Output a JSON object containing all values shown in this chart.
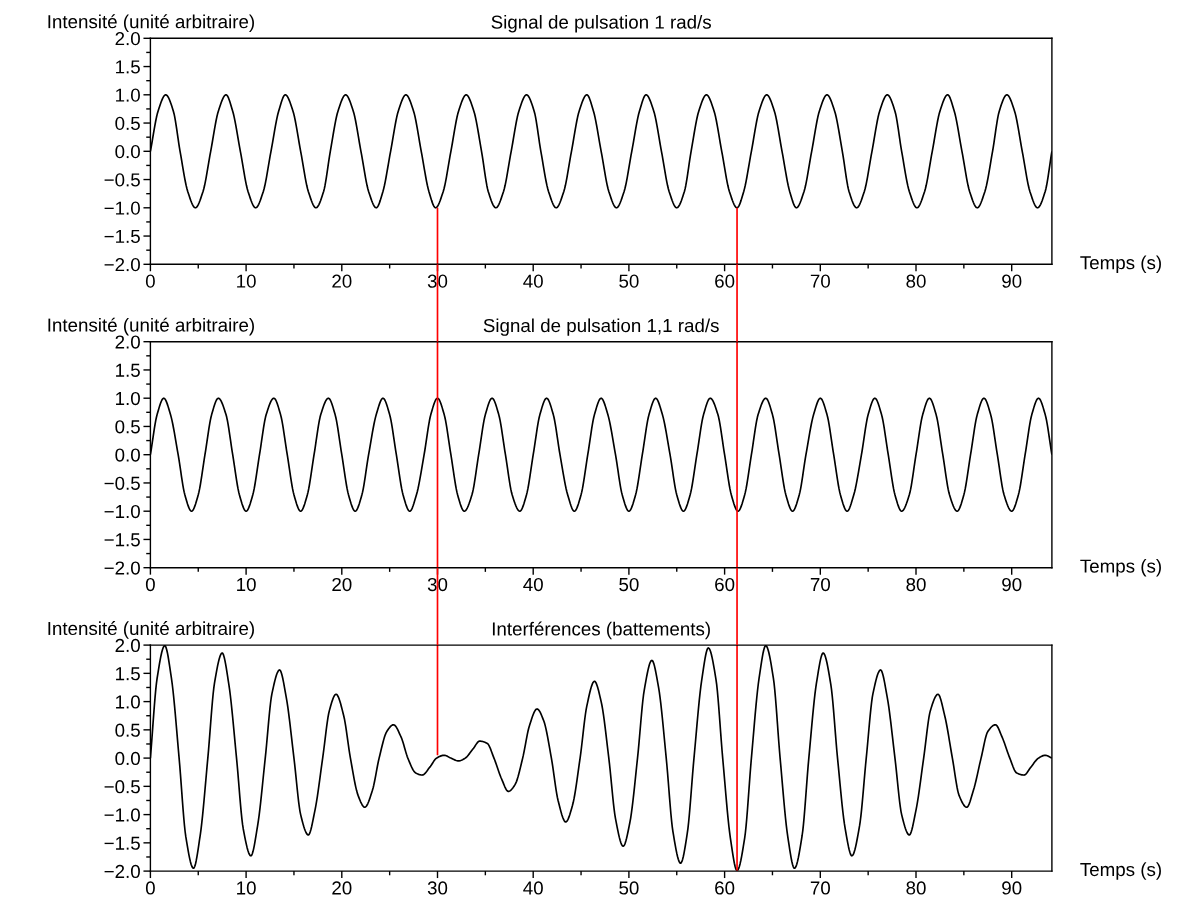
{
  "chart_data": [
    {
      "type": "line",
      "title": "Signal de pulsation 1 rad/s",
      "ylabel": "Intensité (unité arbitraire)",
      "xlabel": "Temps (s)",
      "xlim": [
        0,
        94.2
      ],
      "ylim": [
        -2,
        2
      ],
      "xticks": [
        0,
        {
          "value": 5,
          "label": null
        },
        10,
        {
          "value": 15,
          "label": null
        },
        20,
        {
          "value": 25,
          "label": null
        },
        30,
        {
          "value": 35,
          "label": null
        },
        40,
        {
          "value": 45,
          "label": null
        },
        50,
        {
          "value": 55,
          "label": null
        },
        60,
        {
          "value": 65,
          "label": null
        },
        70,
        {
          "value": 75,
          "label": null
        },
        80,
        {
          "value": 85,
          "label": null
        },
        90
      ],
      "yticks": [
        {
          "value": -2,
          "label": "−2.0"
        },
        {
          "value": -1.75,
          "label": null
        },
        {
          "value": -1.5,
          "label": "−1.5"
        },
        {
          "value": -1.25,
          "label": null
        },
        {
          "value": -1,
          "label": "−1.0"
        },
        {
          "value": -0.75,
          "label": null
        },
        {
          "value": -0.5,
          "label": "−0.5"
        },
        {
          "value": -0.25,
          "label": null
        },
        {
          "value": 0,
          "label": "0.0"
        },
        {
          "value": 0.25,
          "label": null
        },
        {
          "value": 0.5,
          "label": "0.5"
        },
        {
          "value": 0.75,
          "label": null
        },
        {
          "value": 1,
          "label": "1.0"
        },
        {
          "value": 1.25,
          "label": null
        },
        {
          "value": 1.5,
          "label": "1.5"
        },
        {
          "value": 1.75,
          "label": null
        },
        {
          "value": 2,
          "label": "2.0"
        }
      ],
      "series": [
        {
          "color": "#000000",
          "x": [
            0.0,
            0.8,
            1.6,
            2.4,
            3.1,
            3.9,
            4.7,
            5.5,
            6.3,
            7.1,
            7.9,
            8.6,
            9.4,
            10.2,
            11.0,
            11.8,
            12.6,
            13.4,
            14.1,
            14.9,
            15.7,
            16.5,
            17.3,
            18.1,
            18.8,
            19.6,
            20.4,
            21.2,
            22.0,
            22.8,
            23.6,
            24.3,
            25.1,
            25.9,
            26.7,
            27.5,
            28.3,
            29.1,
            29.8,
            30.6,
            31.4,
            32.2,
            33.0,
            33.8,
            34.6,
            35.3,
            36.1,
            36.9,
            37.7,
            38.5,
            39.3,
            40.1,
            40.8,
            41.6,
            42.4,
            43.2,
            44.0,
            44.8,
            45.6,
            46.3,
            47.1,
            47.9,
            48.7,
            49.5,
            50.3,
            51.1,
            51.8,
            52.6,
            53.4,
            54.2,
            55.0,
            55.8,
            56.5,
            57.3,
            58.1,
            58.9,
            59.7,
            60.5,
            61.3,
            62.0,
            62.8,
            63.6,
            64.4,
            65.2,
            66.0,
            66.8,
            67.5,
            68.3,
            69.1,
            69.9,
            70.7,
            71.5,
            72.3,
            73.0,
            73.8,
            74.6,
            75.4,
            76.2,
            77.0,
            77.8,
            78.5,
            79.3,
            80.1,
            80.9,
            81.7,
            82.5,
            83.3,
            84.0,
            84.8,
            85.6,
            86.4,
            87.2,
            88.0,
            88.7,
            89.5,
            90.3,
            91.1,
            91.9,
            92.7,
            93.5,
            94.2
          ],
          "values": [
            0,
            0.71,
            1,
            0.71,
            0,
            -0.71,
            -1,
            -0.71,
            0,
            0.71,
            1,
            0.71,
            0,
            -0.71,
            -1,
            -0.71,
            0,
            0.71,
            1,
            0.71,
            0,
            -0.71,
            -1,
            -0.71,
            0,
            0.71,
            1,
            0.71,
            0,
            -0.71,
            -1,
            -0.71,
            0,
            0.71,
            1,
            0.71,
            0,
            -0.71,
            -1,
            -0.71,
            0,
            0.71,
            1,
            0.71,
            0,
            -0.71,
            -1,
            -0.71,
            0,
            0.71,
            1,
            0.71,
            0,
            -0.71,
            -1,
            -0.71,
            0,
            0.71,
            1,
            0.71,
            0,
            -0.71,
            -1,
            -0.71,
            0,
            0.71,
            1,
            0.71,
            0,
            -0.71,
            -1,
            -0.71,
            0,
            0.71,
            1,
            0.71,
            0,
            -0.71,
            -1,
            -0.71,
            0,
            0.71,
            1,
            0.71,
            0,
            -0.71,
            -1,
            -0.71,
            0,
            0.71,
            1,
            0.71,
            0,
            -0.71,
            -1,
            -0.71,
            0,
            0.71,
            1,
            0.71,
            0,
            -0.71,
            -1,
            -0.71,
            0,
            0.71,
            1,
            0.71,
            0,
            -0.71,
            -1,
            -0.71,
            0,
            0.71,
            1,
            0.71,
            0,
            -0.71,
            -1,
            -0.71,
            0
          ]
        },
        {
          "color": "#ff0000",
          "x": [
            30.0,
            30.0
          ],
          "values": [
            -1.0,
            -2.0
          ]
        },
        {
          "color": "#ff0000",
          "x": [
            61.3,
            61.3
          ],
          "values": [
            -1.0,
            -2.0
          ]
        }
      ]
    },
    {
      "type": "line",
      "title": "Signal de pulsation 1,1 rad/s",
      "ylabel": "Intensité (unité arbitraire)",
      "xlabel": "Temps (s)",
      "xlim": [
        0,
        94.2
      ],
      "ylim": [
        -2,
        2
      ],
      "xticks": [
        0,
        {
          "value": 5,
          "label": null
        },
        10,
        {
          "value": 15,
          "label": null
        },
        20,
        {
          "value": 25,
          "label": null
        },
        30,
        {
          "value": 35,
          "label": null
        },
        40,
        {
          "value": 45,
          "label": null
        },
        50,
        {
          "value": 55,
          "label": null
        },
        60,
        {
          "value": 65,
          "label": null
        },
        70,
        {
          "value": 75,
          "label": null
        },
        80,
        {
          "value": 85,
          "label": null
        },
        90
      ],
      "yticks": [
        {
          "value": -2,
          "label": "−2.0"
        },
        {
          "value": -1.75,
          "label": null
        },
        {
          "value": -1.5,
          "label": "−1.5"
        },
        {
          "value": -1.25,
          "label": null
        },
        {
          "value": -1,
          "label": "−1.0"
        },
        {
          "value": -0.75,
          "label": null
        },
        {
          "value": -0.5,
          "label": "−0.5"
        },
        {
          "value": -0.25,
          "label": null
        },
        {
          "value": 0,
          "label": "0.0"
        },
        {
          "value": 0.25,
          "label": null
        },
        {
          "value": 0.5,
          "label": "0.5"
        },
        {
          "value": 0.75,
          "label": null
        },
        {
          "value": 1,
          "label": "1.0"
        },
        {
          "value": 1.25,
          "label": null
        },
        {
          "value": 1.5,
          "label": "1.5"
        },
        {
          "value": 1.75,
          "label": null
        },
        {
          "value": 2,
          "label": "2.0"
        }
      ],
      "series": [
        {
          "color": "#000000",
          "x": [
            0.0,
            0.7,
            1.4,
            2.1,
            2.9,
            3.6,
            4.3,
            5.0,
            5.7,
            6.4,
            7.1,
            7.9,
            8.6,
            9.3,
            10.0,
            10.7,
            11.4,
            12.1,
            12.9,
            13.6,
            14.3,
            15.0,
            15.7,
            16.4,
            17.1,
            17.8,
            18.6,
            19.3,
            20.0,
            20.7,
            21.4,
            22.1,
            22.8,
            23.6,
            24.3,
            25.0,
            25.7,
            26.4,
            27.1,
            27.8,
            28.6,
            29.3,
            30.0,
            30.7,
            31.4,
            32.1,
            32.8,
            33.6,
            34.3,
            35.0,
            35.7,
            36.4,
            37.1,
            37.8,
            38.6,
            39.3,
            40.0,
            40.7,
            41.4,
            42.1,
            42.8,
            43.6,
            44.3,
            45.0,
            45.7,
            46.4,
            47.1,
            47.8,
            48.6,
            49.3,
            50.0,
            50.7,
            51.4,
            52.1,
            52.8,
            53.5,
            54.3,
            55.0,
            55.7,
            56.4,
            57.1,
            57.8,
            58.5,
            59.3,
            60.0,
            60.7,
            61.4,
            62.1,
            62.8,
            63.5,
            64.3,
            65.0,
            65.7,
            66.4,
            67.1,
            67.8,
            68.5,
            69.3,
            70.0,
            70.7,
            71.4,
            72.1,
            72.8,
            73.5,
            74.3,
            75.0,
            75.7,
            76.4,
            77.1,
            77.8,
            78.5,
            79.3,
            80.0,
            80.7,
            81.4,
            82.1,
            82.8,
            83.5,
            84.3,
            85.0,
            85.7,
            86.4,
            87.1,
            87.8,
            88.5,
            89.2,
            90.0,
            90.7,
            91.4,
            92.1,
            92.8,
            93.5,
            94.2
          ],
          "values": [
            0,
            0.71,
            1,
            0.71,
            0,
            -0.71,
            -1,
            -0.71,
            0,
            0.71,
            1,
            0.71,
            0,
            -0.71,
            -1,
            -0.71,
            0,
            0.71,
            1,
            0.71,
            0,
            -0.71,
            -1,
            -0.71,
            0,
            0.71,
            1,
            0.71,
            0,
            -0.71,
            -1,
            -0.71,
            0,
            0.71,
            1,
            0.71,
            0,
            -0.71,
            -1,
            -0.71,
            0,
            0.71,
            1,
            0.71,
            0,
            -0.71,
            -1,
            -0.71,
            0,
            0.71,
            1,
            0.71,
            0,
            -0.71,
            -1,
            -0.71,
            0,
            0.71,
            1,
            0.71,
            0,
            -0.71,
            -1,
            -0.71,
            0,
            0.71,
            1,
            0.71,
            0,
            -0.71,
            -1,
            -0.71,
            0,
            0.71,
            1,
            0.71,
            0,
            -0.71,
            -1,
            -0.71,
            0,
            0.71,
            1,
            0.71,
            0,
            -0.71,
            -1,
            -0.71,
            0,
            0.71,
            1,
            0.71,
            0,
            -0.71,
            -1,
            -0.71,
            0,
            0.71,
            1,
            0.71,
            0,
            -0.71,
            -1,
            -0.71,
            0,
            0.71,
            1,
            0.71,
            0,
            -0.71,
            -1,
            -0.71,
            0,
            0.71,
            1,
            0.71,
            0,
            -0.71,
            -1,
            -0.71,
            0,
            0.71,
            1,
            0.71,
            0,
            -0.71,
            -1,
            -0.71,
            0,
            0.71,
            1,
            0.71,
            0
          ]
        },
        {
          "color": "#ff0000",
          "x": [
            30.0,
            30.0
          ],
          "values": [
            2.0,
            -2.0
          ]
        },
        {
          "color": "#ff0000",
          "x": [
            61.3,
            61.3
          ],
          "values": [
            2.0,
            -2.0
          ]
        }
      ]
    },
    {
      "type": "line",
      "title": "Interférences (battements)",
      "ylabel": "Intensité (unité arbitraire)",
      "xlabel": "Temps (s)",
      "xlim": [
        0,
        94.2
      ],
      "ylim": [
        -2,
        2
      ],
      "xticks": [
        0,
        {
          "value": 5,
          "label": null
        },
        10,
        {
          "value": 15,
          "label": null
        },
        20,
        {
          "value": 25,
          "label": null
        },
        30,
        {
          "value": 35,
          "label": null
        },
        40,
        {
          "value": 45,
          "label": null
        },
        50,
        {
          "value": 55,
          "label": null
        },
        60,
        {
          "value": 65,
          "label": null
        },
        70,
        {
          "value": 75,
          "label": null
        },
        80,
        {
          "value": 85,
          "label": null
        },
        90
      ],
      "yticks": [
        {
          "value": -2,
          "label": "−2.0"
        },
        {
          "value": -1.75,
          "label": null
        },
        {
          "value": -1.5,
          "label": "−1.5"
        },
        {
          "value": -1.25,
          "label": null
        },
        {
          "value": -1,
          "label": "−1.0"
        },
        {
          "value": -0.75,
          "label": null
        },
        {
          "value": -0.5,
          "label": "−0.5"
        },
        {
          "value": -0.25,
          "label": null
        },
        {
          "value": 0,
          "label": "0.0"
        },
        {
          "value": 0.25,
          "label": null
        },
        {
          "value": 0.5,
          "label": "0.5"
        },
        {
          "value": 0.75,
          "label": null
        },
        {
          "value": 1,
          "label": "1.0"
        },
        {
          "value": 1.25,
          "label": null
        },
        {
          "value": 1.5,
          "label": "1.5"
        },
        {
          "value": 1.75,
          "label": null
        },
        {
          "value": 2,
          "label": "2.0"
        }
      ],
      "series": [
        {
          "color": "#000000",
          "x": [
            0.0,
            0.7,
            1.5,
            2.2,
            3.0,
            3.7,
            4.5,
            5.2,
            6.0,
            6.7,
            7.5,
            8.2,
            9.0,
            9.7,
            10.5,
            11.2,
            12.0,
            12.7,
            13.5,
            14.2,
            15.0,
            15.7,
            16.5,
            17.2,
            18.0,
            18.7,
            19.4,
            20.2,
            20.9,
            21.7,
            22.4,
            23.2,
            23.9,
            24.7,
            25.4,
            26.2,
            26.9,
            27.7,
            28.4,
            29.2,
            29.9,
            30.7,
            31.4,
            32.2,
            32.9,
            33.7,
            34.4,
            35.2,
            35.9,
            36.7,
            37.4,
            38.1,
            38.9,
            39.6,
            40.4,
            41.1,
            41.9,
            42.6,
            43.4,
            44.1,
            44.9,
            45.6,
            46.4,
            47.1,
            47.9,
            48.6,
            49.4,
            50.1,
            50.9,
            51.6,
            52.4,
            53.1,
            53.9,
            54.6,
            55.4,
            56.1,
            56.8,
            57.6,
            58.3,
            59.1,
            59.8,
            60.6,
            61.3,
            62.1,
            62.8,
            63.6,
            64.3,
            65.1,
            65.8,
            66.6,
            67.3,
            68.1,
            68.8,
            69.6,
            70.3,
            71.1,
            71.8,
            72.6,
            73.3,
            74.1,
            74.8,
            75.5,
            76.3,
            77.0,
            77.8,
            78.5,
            79.3,
            80.0,
            80.8,
            81.5,
            82.3,
            83.0,
            83.8,
            84.5,
            85.3,
            86.0,
            86.8,
            87.5,
            88.3,
            89.0,
            89.8,
            90.5,
            91.3,
            92.0,
            92.8,
            93.5,
            94.2
          ],
          "values": [
            0,
            1.41,
            1.99,
            1.41,
            0,
            -1.39,
            -1.95,
            -1.37,
            0,
            1.33,
            1.86,
            1.3,
            0,
            -1.25,
            -1.73,
            -1.2,
            0,
            1.14,
            1.56,
            1.07,
            0,
            -1.0,
            -1.36,
            -0.92,
            0,
            0.84,
            1.13,
            0.75,
            0,
            -0.66,
            -0.87,
            -0.57,
            0,
            0.47,
            0.59,
            0.37,
            0,
            -0.26,
            -0.3,
            -0.16,
            0,
            0.05,
            0,
            -0.05,
            0,
            0.16,
            0.3,
            0.26,
            0,
            -0.37,
            -0.59,
            -0.47,
            0,
            0.57,
            0.87,
            0.66,
            0,
            -0.75,
            -1.13,
            -0.84,
            0,
            0.92,
            1.36,
            1.0,
            0,
            -1.07,
            -1.56,
            -1.14,
            0,
            1.2,
            1.73,
            1.25,
            0,
            -1.3,
            -1.86,
            -1.33,
            0,
            1.37,
            1.95,
            1.39,
            0,
            -1.41,
            -1.99,
            -1.41,
            0,
            1.41,
            1.99,
            1.41,
            0,
            -1.39,
            -1.95,
            -1.37,
            0,
            1.33,
            1.86,
            1.3,
            0,
            -1.25,
            -1.73,
            -1.2,
            0,
            1.14,
            1.56,
            1.07,
            0,
            -1.0,
            -1.36,
            -0.92,
            0,
            0.84,
            1.13,
            0.75,
            0,
            -0.66,
            -0.87,
            -0.57,
            0,
            0.47,
            0.59,
            0.37,
            0,
            -0.26,
            -0.3,
            -0.16,
            0,
            0.05,
            0
          ]
        },
        {
          "color": "#ff0000",
          "x": [
            30.0,
            30.0
          ],
          "values": [
            2.0,
            0.05
          ]
        },
        {
          "color": "#ff0000",
          "x": [
            61.3,
            61.3
          ],
          "values": [
            2.0,
            -2.0
          ]
        }
      ]
    }
  ]
}
